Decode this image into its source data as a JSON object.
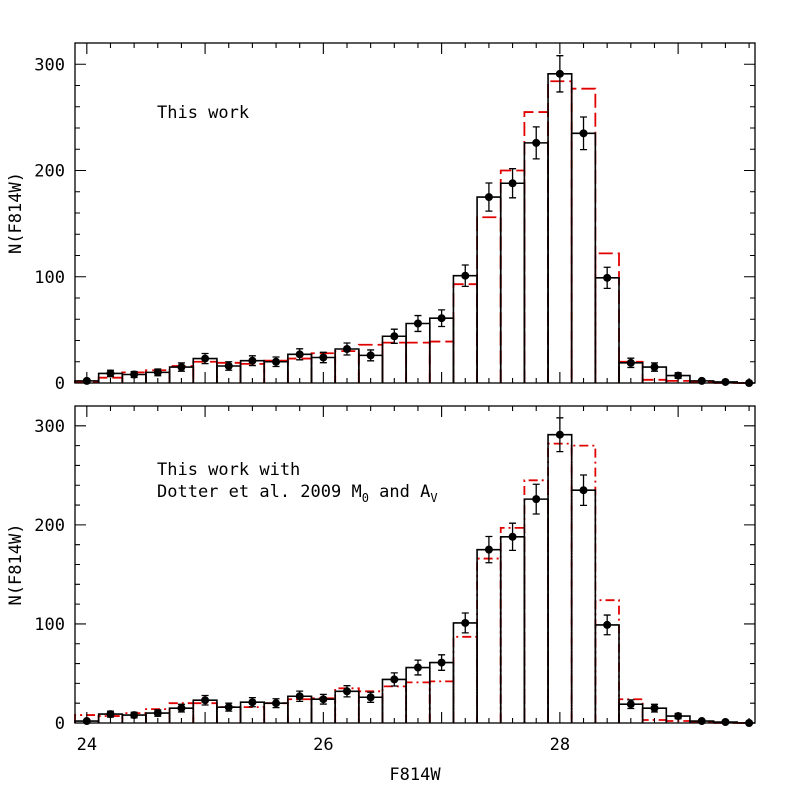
{
  "chart_data": [
    {
      "type": "histogram",
      "panel": "top",
      "annotation": [
        "This work"
      ],
      "ylabel": "N(F814W)",
      "xlabel": "",
      "xlim": [
        23.9,
        29.65
      ],
      "ylim": [
        0,
        320
      ],
      "x_ticks": [
        24,
        26,
        28
      ],
      "y_ticks": [
        0,
        100,
        200,
        300
      ],
      "bin_edges": [
        23.9,
        24.1,
        24.3,
        24.5,
        24.7,
        24.9,
        25.1,
        25.3,
        25.5,
        25.7,
        25.9,
        26.1,
        26.3,
        26.5,
        26.7,
        26.9,
        27.1,
        27.3,
        27.5,
        27.7,
        27.9,
        28.1,
        28.3,
        28.5,
        28.7,
        28.9,
        29.1,
        29.3,
        29.5,
        29.65
      ],
      "series": [
        {
          "kind": "observed",
          "style": "solid-step-with-errorbars",
          "color": "#000000",
          "bin_centers": [
            24.0,
            24.2,
            24.4,
            24.6,
            24.8,
            25.0,
            25.2,
            25.4,
            25.6,
            25.8,
            26.0,
            26.2,
            26.4,
            26.6,
            26.8,
            27.0,
            27.2,
            27.4,
            27.6,
            27.8,
            28.0,
            28.2,
            28.4,
            28.6,
            28.8,
            29.0,
            29.2,
            29.4,
            29.6
          ],
          "values": [
            2,
            9,
            8,
            10,
            15,
            23,
            16,
            21,
            20,
            27,
            24,
            32,
            26,
            44,
            56,
            61,
            101,
            175,
            188,
            226,
            291,
            235,
            99,
            19,
            15,
            7,
            2,
            1,
            0
          ]
        },
        {
          "kind": "model",
          "style": "dashed-step",
          "color": "#e00000",
          "values": [
            1,
            5,
            10,
            12,
            16,
            20,
            19,
            18,
            21,
            23,
            28,
            30,
            36,
            38,
            38,
            39,
            93,
            156,
            200,
            255,
            284,
            277,
            122,
            20,
            3,
            2,
            1,
            0,
            0
          ]
        }
      ]
    },
    {
      "type": "histogram",
      "panel": "bottom",
      "annotation": [
        "This work with",
        "Dotter et al. 2009 M",
        "0",
        " and A",
        "V"
      ],
      "ylabel": "N(F814W)",
      "xlabel": "F814W",
      "xlim": [
        23.9,
        29.65
      ],
      "ylim": [
        0,
        320
      ],
      "x_ticks": [
        24,
        26,
        28
      ],
      "y_ticks": [
        0,
        100,
        200,
        300
      ],
      "bin_edges": [
        23.9,
        24.1,
        24.3,
        24.5,
        24.7,
        24.9,
        25.1,
        25.3,
        25.5,
        25.7,
        25.9,
        26.1,
        26.3,
        26.5,
        26.7,
        26.9,
        27.1,
        27.3,
        27.5,
        27.7,
        27.9,
        28.1,
        28.3,
        28.5,
        28.7,
        28.9,
        29.1,
        29.3,
        29.5,
        29.65
      ],
      "series": [
        {
          "kind": "observed",
          "style": "solid-step-with-errorbars",
          "color": "#000000",
          "bin_centers": [
            24.0,
            24.2,
            24.4,
            24.6,
            24.8,
            25.0,
            25.2,
            25.4,
            25.6,
            25.8,
            26.0,
            26.2,
            26.4,
            26.6,
            26.8,
            27.0,
            27.2,
            27.4,
            27.6,
            27.8,
            28.0,
            28.2,
            28.4,
            28.6,
            28.8,
            29.0,
            29.2,
            29.4,
            29.6
          ],
          "values": [
            2,
            9,
            8,
            10,
            15,
            23,
            16,
            21,
            20,
            27,
            24,
            32,
            26,
            44,
            56,
            61,
            101,
            175,
            188,
            226,
            291,
            235,
            99,
            19,
            15,
            7,
            2,
            1,
            0
          ]
        },
        {
          "kind": "model",
          "style": "dashdot-step",
          "color": "#e00000",
          "values": [
            8,
            7,
            10,
            14,
            20,
            20,
            16,
            16,
            20,
            24,
            25,
            35,
            32,
            37,
            41,
            42,
            87,
            166,
            197,
            245,
            282,
            280,
            124,
            24,
            3,
            2,
            1,
            0,
            0
          ]
        }
      ]
    }
  ]
}
